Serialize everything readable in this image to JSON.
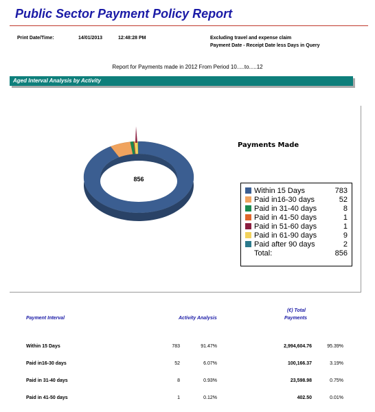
{
  "header": {
    "title": "Public Sector Payment Policy Report",
    "print_label": "Print Date/Time:",
    "print_date": "14/01/2013",
    "print_time": "12:48:28 PM",
    "note1": "Excluding travel and expense claim",
    "note2": "Payment Date - Receipt Date less Days in Query"
  },
  "report_for": "Report for Payments made in 2012 From Period 10.....to.....12",
  "section_title": "Aged Interval Analysis by Activity",
  "chart_data": {
    "type": "pie",
    "title": "Payments Made",
    "center_label": "856",
    "categories": [
      "Within 15 Days",
      "Paid in16-30 days",
      "Paid in 31-40 days",
      "Paid in 41-50 days",
      "Paid in 51-60 days",
      "Paid in 61-90 days",
      "Paid after 90 days"
    ],
    "values": [
      783,
      52,
      8,
      1,
      1,
      9,
      2
    ],
    "colors": [
      "#3b5e91",
      "#f0a35e",
      "#1a8a4f",
      "#e0642a",
      "#8b1e3f",
      "#f2d25c",
      "#2b7a8c"
    ],
    "total_label": "Total:",
    "total": 856,
    "legend_position": "right"
  },
  "table": {
    "headers": {
      "interval": "Payment Interval",
      "activity": "Activity Analysis",
      "total_line1": "(€) Total",
      "total_line2": "Payments"
    },
    "rows": [
      {
        "label": "Within 15 Days",
        "count": "783",
        "pct": "91.47%",
        "amount": "2,994,604.76",
        "amount_pct": "95.39%"
      },
      {
        "label": "Paid in16-30 days",
        "count": "52",
        "pct": "6.07%",
        "amount": "100,166.37",
        "amount_pct": "3.19%"
      },
      {
        "label": "Paid in 31-40 days",
        "count": "8",
        "pct": "0.93%",
        "amount": "23,598.98",
        "amount_pct": "0.75%"
      },
      {
        "label": "Paid in 41-50 days",
        "count": "1",
        "pct": "0.12%",
        "amount": "402.50",
        "amount_pct": "0.01%"
      }
    ]
  }
}
